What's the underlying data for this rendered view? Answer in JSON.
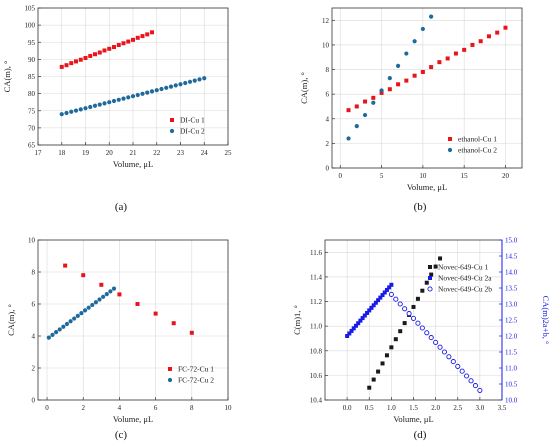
{
  "colors": {
    "red": "#e8141a",
    "teal": "#1f6a9c",
    "blue": "#1a1ae6",
    "black": "#1a1a1a",
    "grid": "#d9d9d9",
    "axis": "#333333"
  },
  "chart_data": [
    {
      "type": "scatter",
      "panel_label": "(a)",
      "xlabel": "Volume, μL",
      "ylabel": "CA(m), °",
      "xlim": [
        17,
        25
      ],
      "ylim": [
        65,
        105
      ],
      "xticks": [
        17,
        18,
        19,
        20,
        21,
        22,
        23,
        24,
        25
      ],
      "yticks": [
        65,
        70,
        75,
        80,
        85,
        90,
        95,
        100,
        105
      ],
      "grid": true,
      "legend_position": "bottom-right",
      "series": [
        {
          "name": "DI-Cu 1",
          "color": "red",
          "marker": "square",
          "x": [
            18.0,
            18.2,
            18.4,
            18.6,
            18.8,
            19.0,
            19.2,
            19.4,
            19.6,
            19.8,
            20.0,
            20.2,
            20.4,
            20.6,
            20.8,
            21.0,
            21.2,
            21.4,
            21.6,
            21.8
          ],
          "y": [
            87.8,
            88.3,
            88.9,
            89.4,
            89.9,
            90.4,
            91.0,
            91.5,
            92.0,
            92.6,
            93.1,
            93.6,
            94.2,
            94.7,
            95.2,
            95.7,
            96.3,
            96.8,
            97.3,
            97.9
          ]
        },
        {
          "name": "DI-Cu 2",
          "color": "teal",
          "marker": "circle",
          "x": [
            18.0,
            18.2,
            18.4,
            18.6,
            18.8,
            19.0,
            19.2,
            19.4,
            19.6,
            19.8,
            20.0,
            20.2,
            20.4,
            20.6,
            20.8,
            21.0,
            21.2,
            21.4,
            21.6,
            21.8,
            22.0,
            22.2,
            22.4,
            22.6,
            22.8,
            23.0,
            23.2,
            23.4,
            23.6,
            23.8,
            24.0
          ],
          "y": [
            74.0,
            74.35,
            74.7,
            75.05,
            75.4,
            75.75,
            76.1,
            76.45,
            76.8,
            77.15,
            77.5,
            77.85,
            78.2,
            78.55,
            78.9,
            79.25,
            79.6,
            79.95,
            80.3,
            80.65,
            81.0,
            81.35,
            81.7,
            82.05,
            82.4,
            82.75,
            83.1,
            83.45,
            83.8,
            84.15,
            84.5
          ]
        }
      ]
    },
    {
      "type": "scatter",
      "panel_label": "(b)",
      "xlabel": "Volume, μL",
      "ylabel": "CA(m), °",
      "xlim": [
        -1,
        22
      ],
      "ylim": [
        0,
        13
      ],
      "xticks": [
        0,
        5,
        10,
        15,
        20
      ],
      "yticks": [
        0,
        2,
        4,
        6,
        8,
        10,
        12
      ],
      "grid": true,
      "legend_position": "bottom-right",
      "series": [
        {
          "name": "ethanol-Cu 1",
          "color": "red",
          "marker": "square",
          "x": [
            1,
            2,
            3,
            4,
            5,
            6,
            7,
            8,
            9,
            10,
            11,
            12,
            13,
            14,
            15,
            16,
            17,
            18,
            19,
            20
          ],
          "y": [
            4.7,
            5.0,
            5.4,
            5.7,
            6.1,
            6.4,
            6.8,
            7.1,
            7.5,
            7.8,
            8.2,
            8.6,
            8.9,
            9.3,
            9.6,
            10.0,
            10.3,
            10.7,
            11.0,
            11.4
          ]
        },
        {
          "name": "ethanol-Cu 2",
          "color": "teal",
          "marker": "circle",
          "x": [
            1,
            2,
            3,
            4,
            5,
            6,
            7,
            8,
            9,
            10,
            11
          ],
          "y": [
            2.4,
            3.4,
            4.3,
            5.3,
            6.3,
            7.3,
            8.3,
            9.3,
            10.3,
            11.3,
            12.3
          ]
        }
      ]
    },
    {
      "type": "scatter",
      "panel_label": "(c)",
      "xlabel": "Volume, μL",
      "ylabel": "CA(m), °",
      "xlim": [
        -0.5,
        10
      ],
      "ylim": [
        0,
        10
      ],
      "xticks": [
        0,
        2,
        4,
        6,
        8,
        10
      ],
      "yticks": [
        0,
        2,
        4,
        6,
        8,
        10
      ],
      "grid": true,
      "legend_position": "bottom-right",
      "series": [
        {
          "name": "FC-72-Cu 1",
          "color": "red",
          "marker": "square",
          "x": [
            1,
            2,
            3,
            4,
            5,
            6,
            7,
            8
          ],
          "y": [
            8.4,
            7.8,
            7.2,
            6.6,
            6.0,
            5.4,
            4.8,
            4.2
          ]
        },
        {
          "name": "FC-72-Cu 2",
          "color": "teal",
          "marker": "circle",
          "x": [
            0.1,
            0.3,
            0.5,
            0.7,
            0.9,
            1.1,
            1.3,
            1.5,
            1.7,
            1.9,
            2.1,
            2.3,
            2.5,
            2.7,
            2.9,
            3.1,
            3.3,
            3.5,
            3.7
          ],
          "y": [
            3.9,
            4.07,
            4.24,
            4.41,
            4.58,
            4.75,
            4.92,
            5.09,
            5.26,
            5.43,
            5.6,
            5.77,
            5.94,
            6.11,
            6.28,
            6.45,
            6.62,
            6.79,
            6.96
          ]
        }
      ]
    },
    {
      "type": "scatter",
      "panel_label": "(d)",
      "xlabel": "Volume, μL",
      "ylabel": "C(m)1, °",
      "ylabel_right": "CA(m)2a+b, °",
      "xlim": [
        -0.5,
        3.5
      ],
      "ylim": [
        10.4,
        11.7
      ],
      "ylim_right": [
        10.0,
        15.0
      ],
      "xticks": [
        0.0,
        0.5,
        1.0,
        1.5,
        2.0,
        2.5,
        3.0,
        3.5
      ],
      "yticks": [
        10.4,
        10.6,
        10.8,
        11.0,
        11.2,
        11.4,
        11.6
      ],
      "yticks_right": [
        10.0,
        10.5,
        11.0,
        11.5,
        12.0,
        12.5,
        13.0,
        13.5,
        14.0,
        14.5,
        15.0
      ],
      "grid": true,
      "legend_position": "top-right",
      "series": [
        {
          "name": "Novec-649-Cu 1",
          "color": "black",
          "marker": "square",
          "axis": "left",
          "x": [
            0.5,
            0.6,
            0.7,
            0.8,
            0.9,
            1.0,
            1.1,
            1.2,
            1.3,
            1.4,
            1.5,
            1.6,
            1.7,
            1.8,
            1.9,
            2.0,
            2.1
          ],
          "y": [
            10.5,
            10.566,
            10.631,
            10.697,
            10.763,
            10.828,
            10.894,
            10.959,
            11.025,
            11.091,
            11.156,
            11.222,
            11.288,
            11.353,
            11.419,
            11.484,
            11.55
          ]
        },
        {
          "name": "Novec-649-Cu 2a",
          "color": "blue",
          "marker": "square",
          "axis": "right",
          "x": [
            0.0,
            0.05,
            0.1,
            0.15,
            0.2,
            0.25,
            0.3,
            0.35,
            0.4,
            0.45,
            0.5,
            0.55,
            0.6,
            0.65,
            0.7,
            0.75,
            0.8,
            0.85,
            0.9,
            0.95,
            1.0
          ],
          "y": [
            12.0,
            12.08,
            12.16,
            12.24,
            12.32,
            12.4,
            12.48,
            12.56,
            12.64,
            12.72,
            12.8,
            12.88,
            12.96,
            13.04,
            13.12,
            13.2,
            13.28,
            13.36,
            13.44,
            13.52,
            13.6
          ]
        },
        {
          "name": "Novec-649-Cu 2b",
          "color": "blue",
          "marker": "open-circle",
          "axis": "right",
          "x": [
            1.0,
            1.1,
            1.2,
            1.3,
            1.4,
            1.5,
            1.6,
            1.7,
            1.8,
            1.9,
            2.0,
            2.1,
            2.2,
            2.3,
            2.4,
            2.5,
            2.6,
            2.7,
            2.8,
            2.9,
            3.0
          ],
          "y": [
            13.3,
            13.15,
            13.0,
            12.85,
            12.7,
            12.55,
            12.4,
            12.25,
            12.1,
            11.95,
            11.8,
            11.65,
            11.5,
            11.35,
            11.2,
            11.05,
            10.9,
            10.75,
            10.6,
            10.45,
            10.3
          ]
        }
      ]
    }
  ]
}
